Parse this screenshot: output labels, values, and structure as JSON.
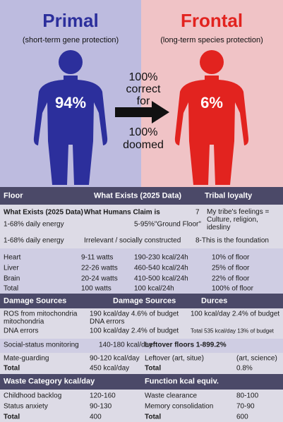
{
  "hero": {
    "left": {
      "title": "Primal",
      "subtitle": "(short-term gene protection)",
      "percent": "94%"
    },
    "right": {
      "title": "Frontal",
      "subtitle": "(long-term species protection)",
      "percent": "6%"
    },
    "middle": {
      "top": [
        "100%",
        "correct",
        "for"
      ],
      "bottom": [
        "100%",
        "doomed"
      ]
    }
  },
  "table": {
    "sections": [
      {
        "header": [
          "Floor",
          "What Exists (2025 Data)",
          "Tribal loyalty"
        ],
        "rows": [
          [
            "What Exists (2025 Data)",
            "What Humans Claim is",
            "7",
            "My tribe's feelings = Culture, religion, idesliny"
          ],
          [
            "1-68% daily energy",
            "5-95%\"Ground Floor\""
          ],
          [
            "1-68% daily energy",
            "Irrelevant / socially constructed",
            "8-This is the foundation"
          ],
          [
            "Heart",
            "9-11 watts",
            "190-230 kcal/24h",
            "10% of floor"
          ],
          [
            "Liver",
            "22-26 watts",
            "460-540 kcal/24h",
            "25% of floor"
          ],
          [
            "Brain",
            "20-24 watts",
            "410-500 kcal/24h",
            "22% of floor"
          ],
          [
            "Total",
            "100 watts",
            "100 kcal/24h",
            "100% of floor"
          ]
        ]
      },
      {
        "header": [
          "Damage Sources",
          "Damage Sources",
          "Durces"
        ],
        "rows": [
          [
            "ROS from mitochondria",
            "190 kcal/day 4.6% of budget",
            "100 kcal/day 2.4% of budget"
          ],
          [
            "mitochondria",
            "DNA errors"
          ],
          [
            "DNA errors",
            "100 kcal/day 2.4% of budget",
            "Total 535 kcal/day 13% of budget"
          ],
          [
            "Social-status monitoring",
            "140-180 kcal/day",
            "Leftover floors 1-899.2%"
          ],
          [
            "Mate-guarding",
            "90-120 kcal/day",
            "Leftover (art, situe)",
            "(art, science)"
          ],
          [
            "Total",
            "450 kcal/day",
            "Total",
            "0.8%"
          ]
        ]
      },
      {
        "header": [
          "Waste Category kcal/day",
          "Function kcal equiv."
        ],
        "rows": [
          [
            "Childhood backlog",
            "120-160",
            "Waste clearance",
            "80-100"
          ],
          [
            "Status anxiety",
            "90-130",
            "Memory consolidation",
            "70-90"
          ],
          [
            "Total",
            "400",
            "Total",
            "600"
          ]
        ]
      }
    ]
  }
}
